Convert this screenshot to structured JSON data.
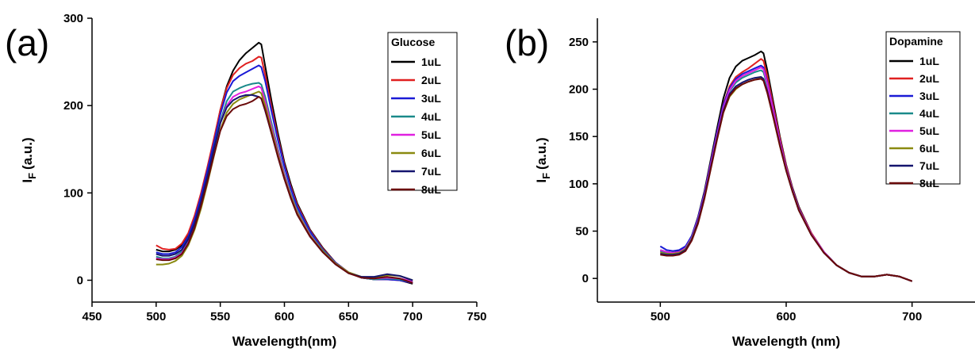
{
  "figure": {
    "panel_a_label": "(a)",
    "panel_b_label": "(b)"
  },
  "chart_data": [
    {
      "type": "line",
      "panel": "(a)",
      "xlabel": "Wavelength(nm)",
      "ylabel": "I",
      "ylabel_sub": "F",
      "ylabel_unit": "(a.u.)",
      "xlim": [
        450,
        750
      ],
      "ylim": [
        -25,
        300
      ],
      "xticks": [
        450,
        500,
        550,
        600,
        650,
        700,
        750
      ],
      "yticks": [
        0,
        100,
        200,
        300
      ],
      "legend_title": "Glucose",
      "legend_position": "top-right",
      "x": [
        500,
        505,
        510,
        515,
        520,
        525,
        530,
        535,
        540,
        545,
        550,
        555,
        560,
        565,
        570,
        575,
        580,
        582,
        585,
        590,
        595,
        600,
        605,
        610,
        620,
        630,
        640,
        650,
        660,
        670,
        680,
        690,
        700
      ],
      "series": [
        {
          "name": "1uL",
          "color": "#000000",
          "values": [
            35,
            33,
            33,
            35,
            40,
            52,
            72,
            98,
            128,
            160,
            195,
            222,
            240,
            252,
            260,
            266,
            272,
            270,
            245,
            205,
            168,
            135,
            110,
            88,
            58,
            37,
            20,
            9,
            3,
            1,
            2,
            0,
            -4
          ]
        },
        {
          "name": "2uL",
          "color": "#e02020",
          "values": [
            40,
            36,
            35,
            36,
            42,
            54,
            74,
            100,
            130,
            162,
            195,
            220,
            235,
            243,
            248,
            251,
            256,
            255,
            235,
            198,
            163,
            132,
            107,
            86,
            57,
            36,
            20,
            9,
            3,
            1,
            1,
            0,
            -3
          ]
        },
        {
          "name": "3uL",
          "color": "#1a1ad6",
          "values": [
            32,
            30,
            30,
            32,
            38,
            50,
            70,
            96,
            126,
            157,
            190,
            215,
            228,
            234,
            238,
            242,
            246,
            244,
            228,
            193,
            160,
            130,
            105,
            84,
            56,
            35,
            20,
            9,
            3,
            1,
            1,
            0,
            -3
          ]
        },
        {
          "name": "4uL",
          "color": "#1a8a8a",
          "values": [
            27,
            25,
            25,
            27,
            33,
            45,
            64,
            89,
            118,
            150,
            182,
            205,
            216,
            220,
            223,
            225,
            226,
            224,
            210,
            180,
            150,
            122,
            99,
            80,
            53,
            34,
            19,
            9,
            3,
            1,
            2,
            1,
            -2
          ]
        },
        {
          "name": "5uL",
          "color": "#e020e0",
          "values": [
            25,
            24,
            24,
            26,
            31,
            43,
            62,
            87,
            116,
            148,
            180,
            200,
            210,
            214,
            216,
            219,
            222,
            220,
            205,
            176,
            147,
            120,
            97,
            78,
            52,
            33,
            19,
            9,
            3,
            2,
            3,
            2,
            -1
          ]
        },
        {
          "name": "6uL",
          "color": "#8a8a10",
          "values": [
            18,
            18,
            19,
            22,
            28,
            40,
            58,
            82,
            111,
            142,
            172,
            192,
            202,
            207,
            210,
            213,
            216,
            214,
            200,
            172,
            144,
            118,
            96,
            77,
            51,
            33,
            19,
            9,
            4,
            3,
            6,
            5,
            0
          ]
        },
        {
          "name": "7uL",
          "color": "#14146e",
          "values": [
            30,
            28,
            28,
            30,
            35,
            47,
            65,
            90,
            119,
            150,
            180,
            198,
            206,
            210,
            212,
            212,
            210,
            208,
            194,
            168,
            141,
            116,
            94,
            75,
            50,
            32,
            18,
            8,
            4,
            4,
            7,
            5,
            0
          ]
        },
        {
          "name": "8uL",
          "color": "#6a0a0a",
          "values": [
            24,
            23,
            23,
            25,
            30,
            42,
            60,
            85,
            113,
            143,
            171,
            188,
            196,
            200,
            202,
            205,
            210,
            208,
            195,
            168,
            141,
            116,
            94,
            75,
            50,
            32,
            18,
            8,
            3,
            2,
            4,
            2,
            -3
          ]
        }
      ]
    },
    {
      "type": "line",
      "panel": "(b)",
      "xlabel": "Wavelength (nm)",
      "ylabel": "I",
      "ylabel_sub": "F",
      "ylabel_unit": "(a.u.)",
      "xlim": [
        450,
        750
      ],
      "ylim": [
        -25,
        275
      ],
      "xticks": [
        500,
        600,
        700
      ],
      "yticks": [
        0,
        50,
        100,
        150,
        200,
        250
      ],
      "legend_title": "Dopamine",
      "legend_position": "top-right",
      "x": [
        500,
        505,
        510,
        515,
        520,
        525,
        530,
        535,
        540,
        545,
        550,
        555,
        560,
        565,
        570,
        575,
        580,
        582,
        585,
        590,
        595,
        600,
        605,
        610,
        620,
        630,
        640,
        650,
        660,
        670,
        680,
        690,
        700
      ],
      "series": [
        {
          "name": "1uL",
          "color": "#000000",
          "values": [
            30,
            28,
            27,
            29,
            33,
            45,
            65,
            92,
            125,
            158,
            190,
            212,
            224,
            230,
            233,
            236,
            240,
            238,
            220,
            185,
            150,
            120,
            96,
            76,
            48,
            28,
            14,
            6,
            2,
            2,
            4,
            2,
            -3
          ]
        },
        {
          "name": "2uL",
          "color": "#e02020",
          "values": [
            28,
            27,
            26,
            28,
            32,
            44,
            63,
            90,
            122,
            154,
            184,
            203,
            213,
            218,
            222,
            227,
            232,
            230,
            214,
            181,
            148,
            119,
            95,
            75,
            48,
            28,
            14,
            6,
            2,
            2,
            4,
            2,
            -3
          ]
        },
        {
          "name": "3uL",
          "color": "#1a1ad6",
          "values": [
            34,
            30,
            29,
            30,
            34,
            45,
            64,
            90,
            122,
            154,
            183,
            201,
            211,
            216,
            219,
            222,
            225,
            223,
            208,
            177,
            145,
            117,
            94,
            74,
            47,
            28,
            14,
            6,
            2,
            2,
            4,
            2,
            -3
          ]
        },
        {
          "name": "4uL",
          "color": "#1a8a8a",
          "values": [
            29,
            27,
            27,
            28,
            32,
            43,
            62,
            88,
            120,
            151,
            180,
            198,
            207,
            212,
            215,
            218,
            220,
            218,
            204,
            174,
            143,
            116,
            93,
            73,
            47,
            28,
            14,
            6,
            2,
            2,
            4,
            2,
            -3
          ]
        },
        {
          "name": "5uL",
          "color": "#e020e0",
          "values": [
            30,
            28,
            27,
            28,
            32,
            43,
            62,
            88,
            120,
            151,
            180,
            199,
            209,
            214,
            217,
            220,
            223,
            221,
            206,
            175,
            144,
            116,
            93,
            73,
            47,
            28,
            14,
            6,
            2,
            2,
            4,
            2,
            -3
          ]
        },
        {
          "name": "6uL",
          "color": "#8a8a10",
          "values": [
            27,
            26,
            26,
            27,
            31,
            42,
            60,
            85,
            116,
            147,
            175,
            192,
            200,
            205,
            208,
            210,
            212,
            210,
            197,
            169,
            140,
            114,
            92,
            72,
            46,
            27,
            14,
            6,
            2,
            2,
            4,
            2,
            -3
          ]
        },
        {
          "name": "7uL",
          "color": "#14146e",
          "values": [
            26,
            25,
            25,
            26,
            30,
            41,
            60,
            86,
            117,
            148,
            177,
            195,
            203,
            207,
            210,
            212,
            213,
            211,
            198,
            170,
            141,
            114,
            92,
            72,
            46,
            27,
            14,
            6,
            2,
            2,
            4,
            2,
            -3
          ]
        },
        {
          "name": "8uL",
          "color": "#6a0a0a",
          "values": [
            25,
            24,
            24,
            25,
            29,
            40,
            58,
            84,
            115,
            146,
            175,
            193,
            201,
            205,
            208,
            210,
            211,
            209,
            196,
            169,
            140,
            114,
            92,
            72,
            46,
            27,
            14,
            6,
            2,
            2,
            4,
            2,
            -3
          ]
        }
      ]
    }
  ]
}
